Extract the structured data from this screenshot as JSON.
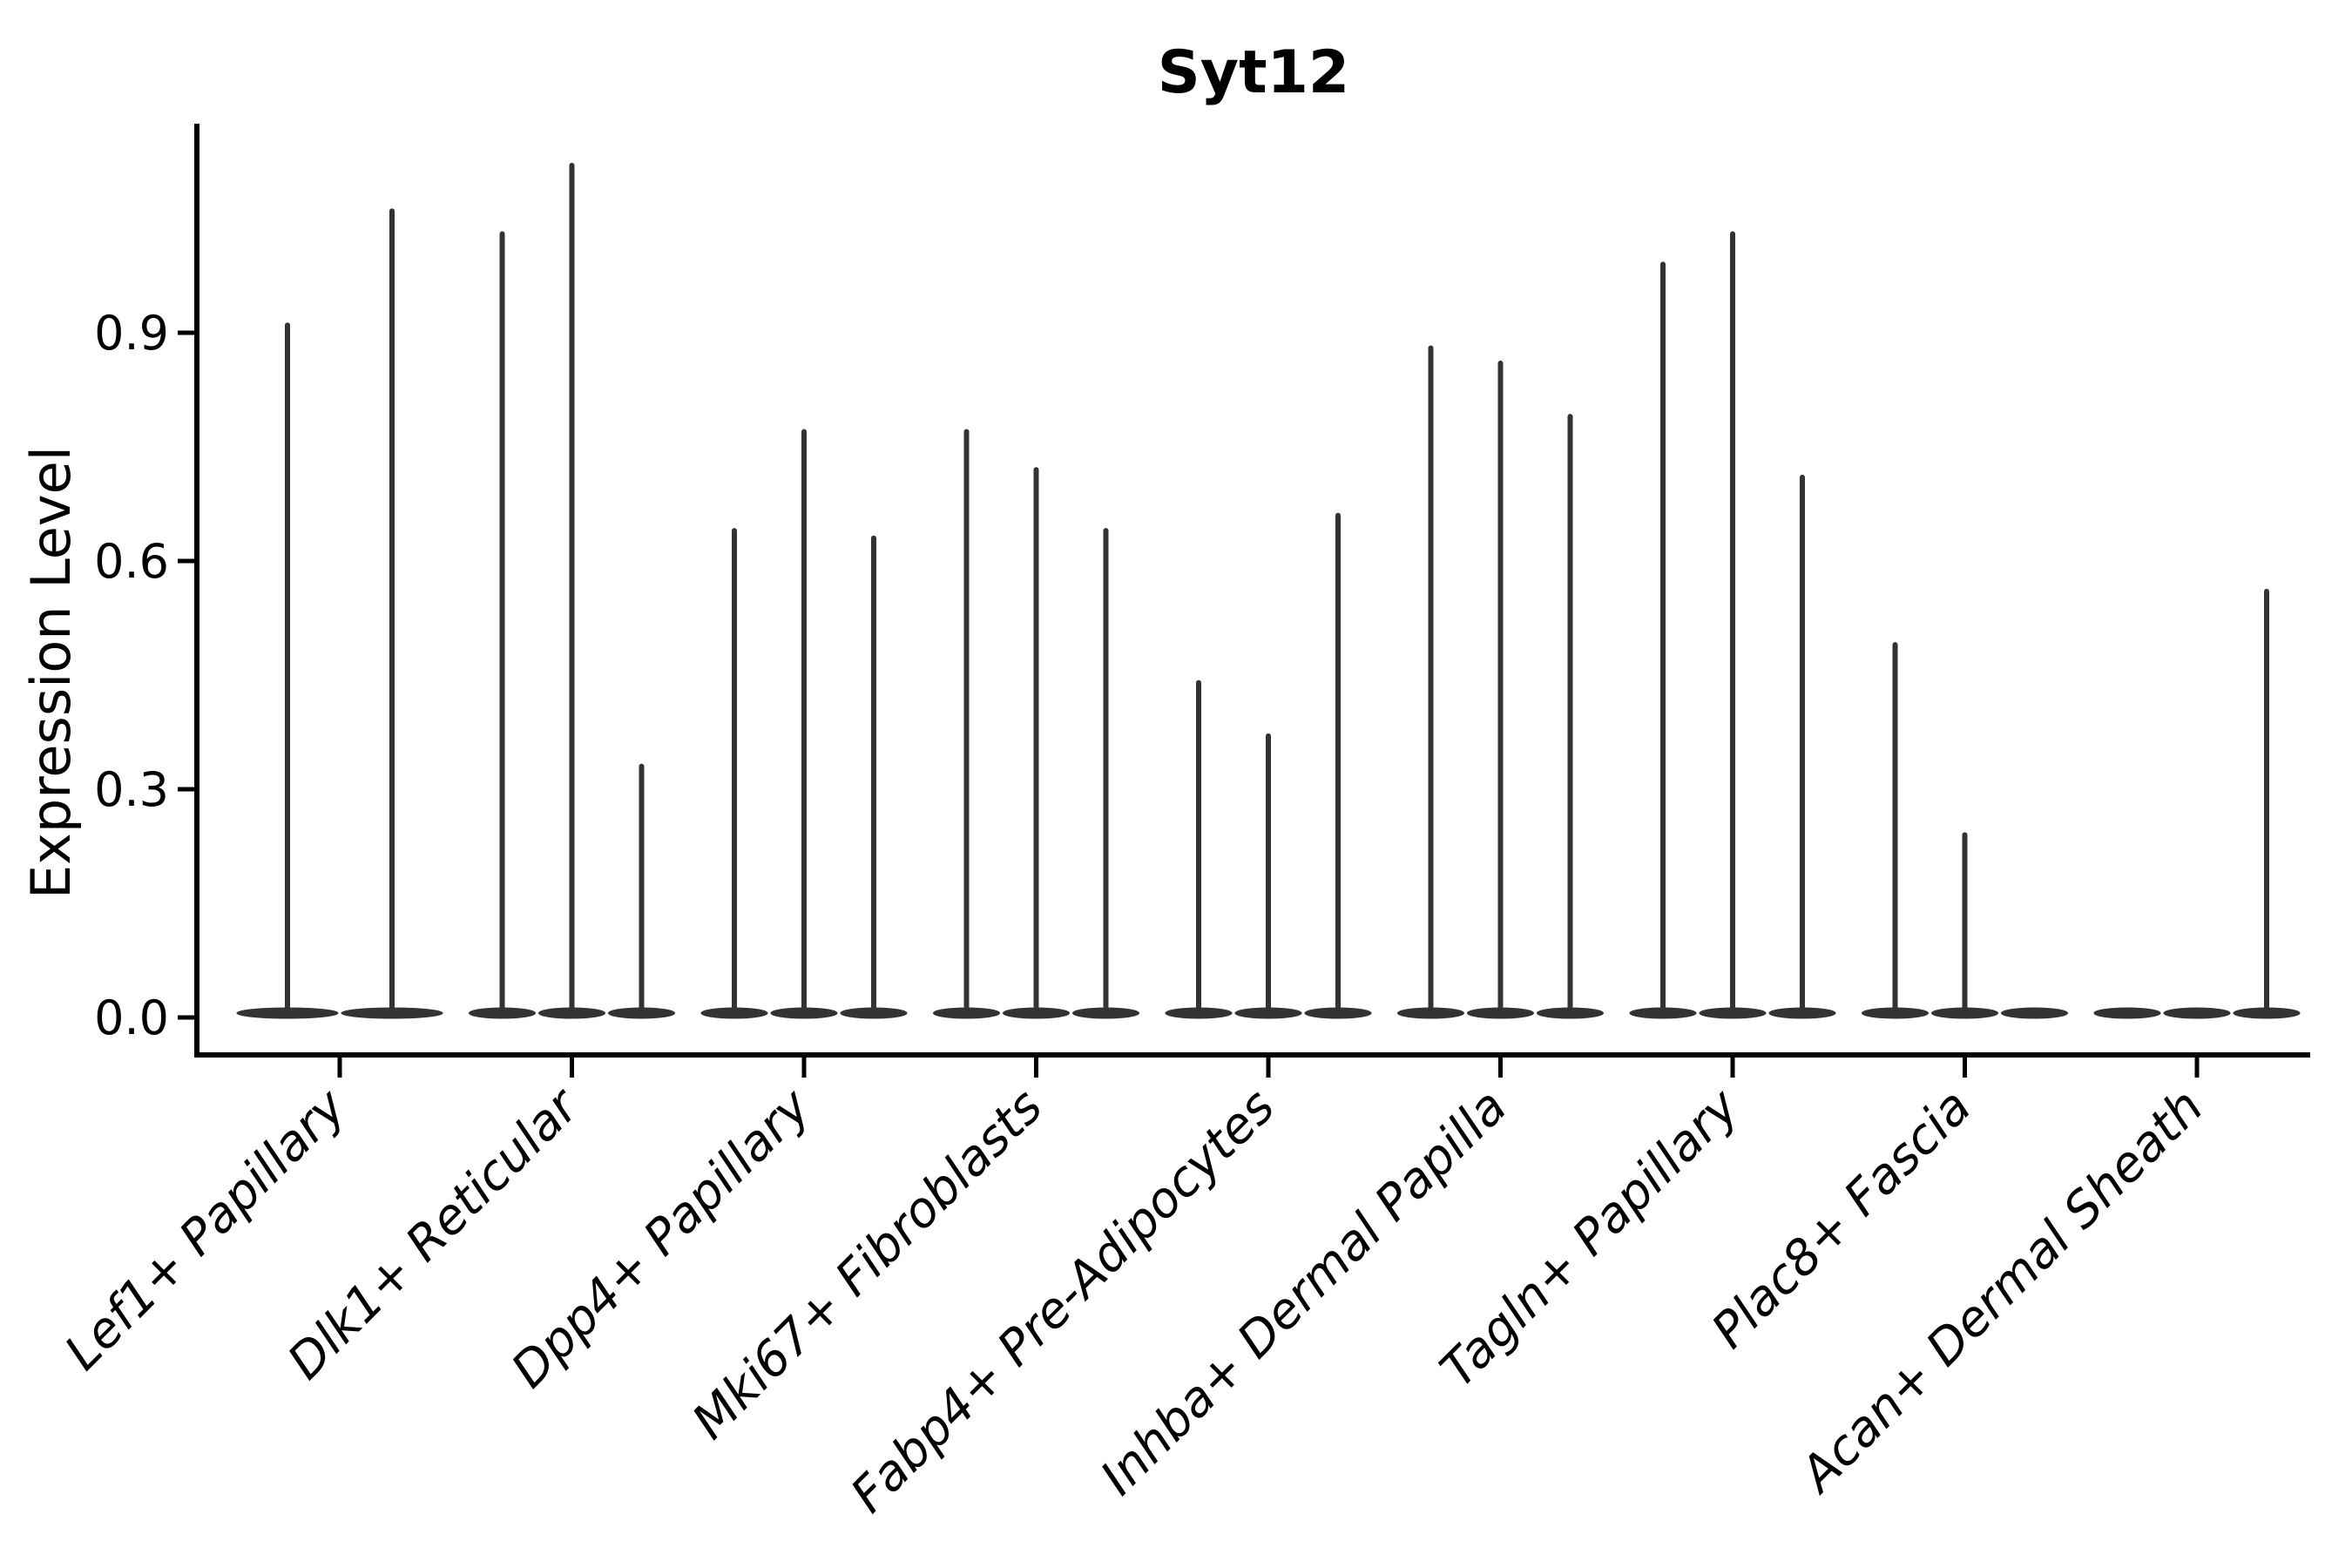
{
  "chart_data": {
    "type": "violin",
    "title": "Syt12",
    "ylabel": "Expression Level",
    "xlabel": "",
    "yticks": [
      "0.0",
      "0.3",
      "0.6",
      "0.9"
    ],
    "ylim": [
      0,
      1.17
    ],
    "grid": false,
    "legend": false,
    "x_tick_rotation": 45,
    "x_label_style": "italic",
    "groups": [
      {
        "label": "Lef1+ Papillary",
        "violin_max": [
          0.91,
          1.06
        ]
      },
      {
        "label": "Dlk1+ Reticular",
        "violin_max": [
          1.03,
          1.12,
          0.33
        ]
      },
      {
        "label": "Dpp4+ Papillary",
        "violin_max": [
          0.64,
          0.77,
          0.63
        ]
      },
      {
        "label": "Mki67+ Fibroblasts",
        "violin_max": [
          0.77,
          0.72,
          0.64
        ]
      },
      {
        "label": "Fabp4+ Pre-Adipocytes",
        "violin_max": [
          0.44,
          0.37,
          0.66
        ]
      },
      {
        "label": "Inhba+ Dermal Papilla",
        "violin_max": [
          0.88,
          0.86,
          0.79
        ]
      },
      {
        "label": "Tagln+ Papillary",
        "violin_max": [
          0.99,
          1.03,
          0.71
        ]
      },
      {
        "label": "Plac8+ Fascia",
        "violin_max": [
          0.49,
          0.24,
          0.0
        ]
      },
      {
        "label": "Acan+ Dermal Sheath",
        "violin_max": [
          0.0,
          0.0,
          0.56
        ]
      }
    ],
    "layout_hint": "zero-inflated violins: each violin is a wide flat lens at 0 with a thin vertical tail rising to violin_max; 0.0 means flat base only, no tail",
    "colors": {
      "violin": "#333333",
      "axis": "#000000",
      "text": "#000000",
      "background": "#ffffff"
    }
  }
}
